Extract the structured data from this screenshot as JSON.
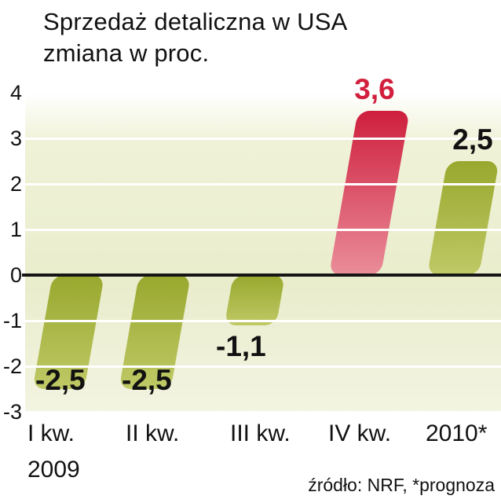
{
  "title": {
    "line1": "Sprzedaż detaliczna w USA",
    "line2": "zmiana w proc."
  },
  "source": "źródło: NRF, *prognoza",
  "chart_data": {
    "type": "bar",
    "title": "Sprzedaż detaliczna w USA — zmiana w proc.",
    "categories": [
      "I kw.",
      "II kw.",
      "III kw.",
      "IV kw.",
      "2010*"
    ],
    "category_subline": {
      "index": 0,
      "label": "2009"
    },
    "values": [
      -2.5,
      -2.5,
      -1.1,
      3.6,
      2.5
    ],
    "value_labels": [
      "-2,5",
      "-2,5",
      "-1,1",
      "3,6",
      "2,5"
    ],
    "bar_styles": [
      "green",
      "green",
      "green",
      "red",
      "green"
    ],
    "label_colors": [
      "#111111",
      "#111111",
      "#111111",
      "#d11f3d",
      "#111111"
    ],
    "yticks": [
      4,
      3,
      2,
      1,
      0,
      -1,
      -2,
      -3
    ],
    "ylim": [
      -3,
      4
    ],
    "grid": true,
    "legend": "none",
    "colors": {
      "bar_green_top": "#98a82e",
      "bar_green_bottom": "#bfc966",
      "bar_red_top": "#ce1f3d",
      "bar_red_bottom": "#ea8d9a",
      "grid_line": "#ffffff",
      "zero_line": "#151515",
      "highlight_label": "#d11f3d"
    }
  }
}
